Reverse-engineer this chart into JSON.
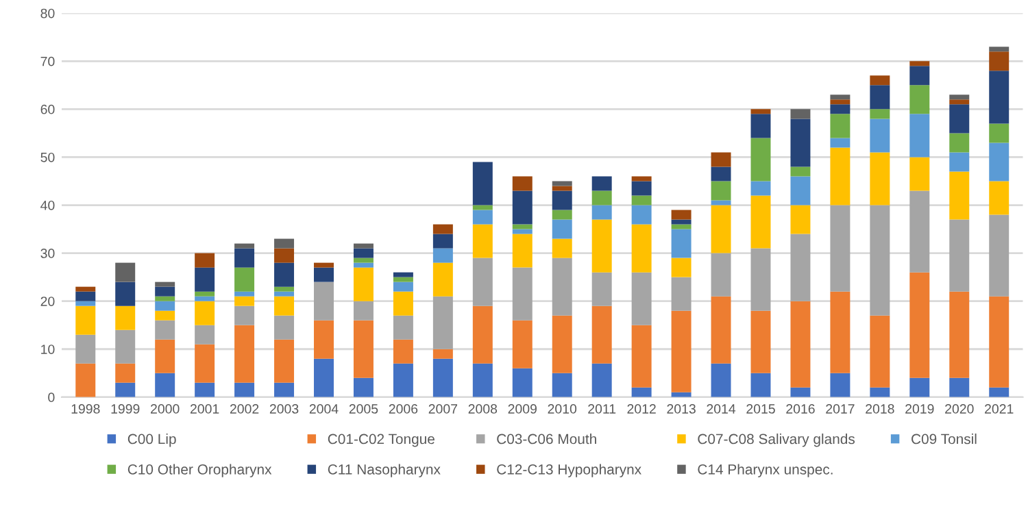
{
  "chart_data": {
    "type": "bar",
    "stacked": true,
    "categories": [
      "1998",
      "1999",
      "2000",
      "2001",
      "2002",
      "2003",
      "2004",
      "2005",
      "2006",
      "2007",
      "2008",
      "2009",
      "2010",
      "2011",
      "2012",
      "2013",
      "2014",
      "2015",
      "2016",
      "2017",
      "2018",
      "2019",
      "2020",
      "2021"
    ],
    "series": [
      {
        "name": "C00 Lip",
        "color": "#4472c4",
        "values": [
          0,
          3,
          5,
          3,
          3,
          3,
          8,
          4,
          7,
          8,
          7,
          6,
          5,
          7,
          2,
          1,
          7,
          5,
          2,
          5,
          2,
          4,
          4,
          2
        ]
      },
      {
        "name": "C01-C02 Tongue",
        "color": "#ed7d31",
        "values": [
          7,
          4,
          7,
          8,
          12,
          9,
          8,
          12,
          5,
          2,
          12,
          10,
          12,
          12,
          13,
          17,
          14,
          13,
          18,
          17,
          15,
          22,
          18,
          19
        ]
      },
      {
        "name": "C03-C06 Mouth",
        "color": "#a5a5a5",
        "values": [
          6,
          7,
          4,
          4,
          4,
          5,
          8,
          4,
          5,
          11,
          10,
          11,
          12,
          7,
          11,
          7,
          9,
          13,
          14,
          18,
          23,
          17,
          15,
          17
        ]
      },
      {
        "name": "C07-C08 Salivary glands",
        "color": "#ffc000",
        "values": [
          6,
          5,
          2,
          5,
          2,
          4,
          0,
          7,
          5,
          7,
          7,
          7,
          4,
          11,
          10,
          4,
          10,
          11,
          6,
          12,
          11,
          7,
          10,
          7
        ]
      },
      {
        "name": "C09 Tonsil",
        "color": "#5b9bd5",
        "values": [
          1,
          0,
          2,
          1,
          1,
          1,
          0,
          1,
          2,
          3,
          3,
          1,
          4,
          3,
          4,
          6,
          1,
          3,
          6,
          2,
          7,
          9,
          4,
          8
        ]
      },
      {
        "name": "C10 Other Oropharynx",
        "color": "#70ad47",
        "values": [
          0,
          0,
          1,
          1,
          5,
          1,
          0,
          1,
          1,
          0,
          1,
          1,
          2,
          3,
          2,
          1,
          4,
          9,
          2,
          5,
          2,
          6,
          4,
          4
        ]
      },
      {
        "name": "C11 Nasopharynx",
        "color": "#264478",
        "values": [
          2,
          5,
          2,
          5,
          4,
          5,
          3,
          2,
          1,
          3,
          9,
          7,
          4,
          3,
          3,
          1,
          3,
          5,
          10,
          2,
          5,
          4,
          6,
          11
        ]
      },
      {
        "name": "C12-C13 Hypopharynx",
        "color": "#9e480e",
        "values": [
          1,
          0,
          0,
          3,
          0,
          3,
          1,
          0,
          0,
          2,
          0,
          3,
          1,
          0,
          1,
          2,
          3,
          1,
          0,
          1,
          2,
          1,
          1,
          4
        ]
      },
      {
        "name": "C14 Pharynx unspec.",
        "color": "#636363",
        "values": [
          0,
          4,
          1,
          0,
          1,
          2,
          0,
          1,
          0,
          0,
          0,
          0,
          1,
          0,
          0,
          0,
          0,
          0,
          2,
          1,
          0,
          0,
          1,
          1
        ]
      }
    ],
    "ylim": [
      0,
      80
    ],
    "yticks": [
      0,
      10,
      20,
      30,
      40,
      50,
      60,
      70,
      80
    ],
    "grid": "y",
    "legend": "bottom"
  }
}
